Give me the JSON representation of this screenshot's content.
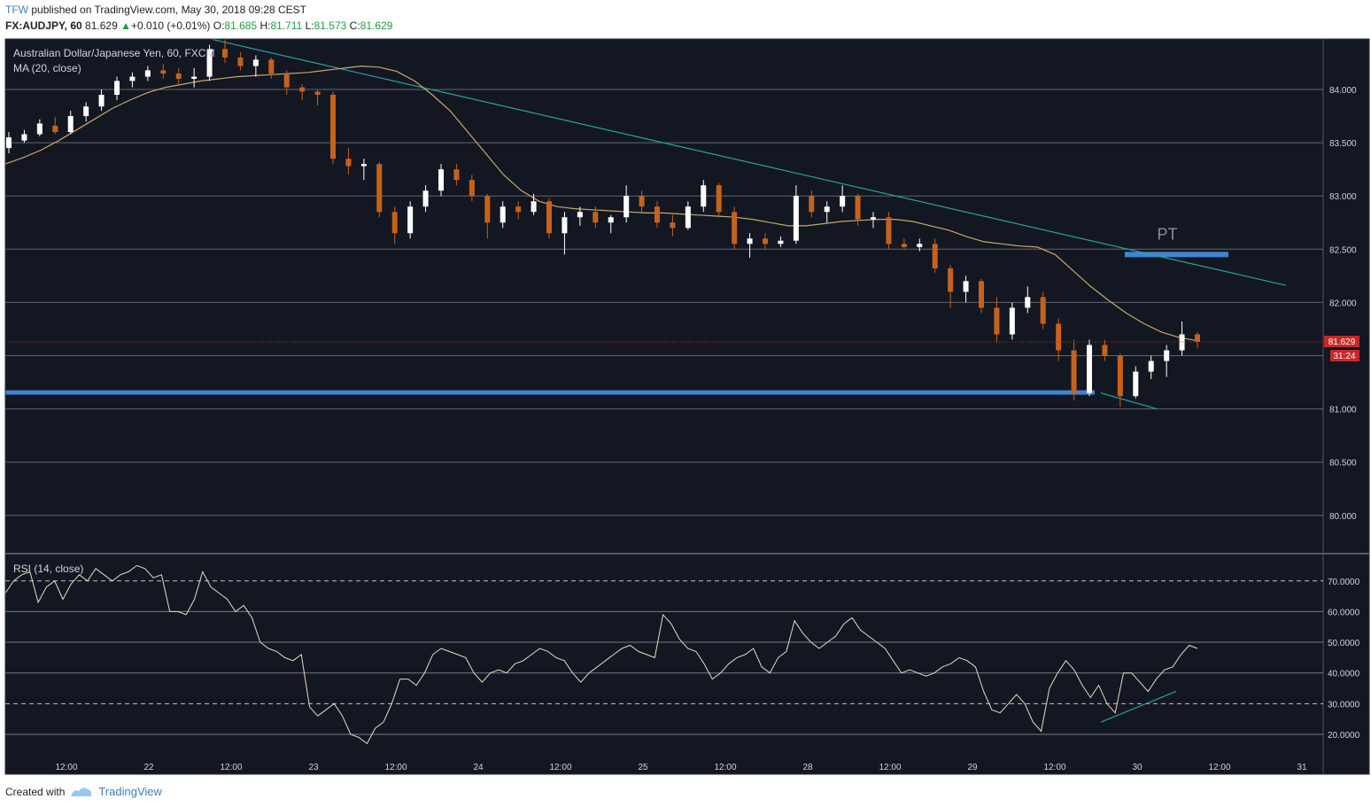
{
  "header": {
    "author": "TFW",
    "published_text": "published on TradingView.com, May 30, 2018 09:28 CEST",
    "symbol": "FX:AUDJPY, 60",
    "last": "81.629",
    "change": "+0.010 (+0.01%)",
    "o_label": "O:",
    "o_value": "81.685",
    "h_label": "H:",
    "h_value": "81.711",
    "l_label": "L:",
    "l_value": "81.573",
    "c_label": "C:",
    "c_value": "81.629"
  },
  "chart_data": [
    {
      "type": "candlestick",
      "title": "Australian Dollar/Japanese Yen, 60, FXCM",
      "indicator_label": "MA (20, close)",
      "ylim": [
        79.7,
        84.5
      ],
      "yticks": [
        80.0,
        80.5,
        81.0,
        81.5,
        82.0,
        82.5,
        83.0,
        83.5,
        84.0
      ],
      "ytick_labels": [
        "80.000",
        "80.500",
        "81.000",
        "",
        "82.000",
        "82.500",
        "83.000",
        "83.500",
        "84.000"
      ],
      "xlabels": [
        "12:00",
        "22",
        "12:00",
        "23",
        "12:00",
        "24",
        "12:00",
        "25",
        "12:00",
        "28",
        "12:00",
        "29",
        "12:00",
        "30",
        "12:00",
        "31"
      ],
      "grid": true,
      "last_price": 81.629,
      "last_price_label": "81.629",
      "countdown_label": "31:24",
      "close_path": [
        83.45,
        83.55,
        83.6,
        83.65,
        83.7,
        83.6,
        83.75,
        83.8,
        83.85,
        83.95,
        84.05,
        84.1,
        84.15,
        84.2,
        84.18,
        84.22,
        84.15,
        84.1,
        84.05,
        84.1,
        84.25,
        84.4,
        84.35,
        84.3,
        84.25,
        84.2,
        84.3,
        84.2,
        84.1,
        84.05,
        84.0,
        84.02,
        83.98,
        83.95,
        83.4,
        83.3,
        83.35,
        83.1,
        82.85,
        82.6,
        82.65,
        82.75,
        82.9,
        82.95,
        83.05,
        83.2,
        83.25,
        83.2,
        83.15,
        82.95,
        82.9,
        82.85,
        82.8,
        82.7,
        82.8,
        82.9,
        82.95,
        82.85,
        82.6,
        82.5,
        82.65,
        82.75,
        82.8,
        82.85,
        82.8,
        82.75,
        82.8,
        82.85,
        82.9,
        82.95,
        82.9,
        82.8,
        82.95,
        83.05,
        82.95,
        82.8,
        82.6,
        82.55,
        82.6,
        82.65,
        82.6,
        82.55,
        82.7,
        82.95,
        82.9,
        82.85,
        82.8,
        82.85,
        82.9,
        82.95,
        82.9,
        82.85,
        82.8,
        82.7,
        82.55,
        82.5,
        82.52,
        82.5,
        82.55,
        82.55,
        82.58,
        82.5,
        82.2,
        82.1,
        82.15,
        82.2,
        82.1,
        81.95,
        81.7,
        81.8,
        81.9,
        82.05,
        81.95,
        81.75,
        81.55,
        81.5,
        81.35,
        81.15,
        81.45,
        81.55,
        81.5,
        81.3,
        81.2,
        81.15,
        81.3,
        81.45,
        81.5,
        81.55,
        81.65,
        81.63
      ],
      "ma_path": [
        83.3,
        83.36,
        83.43,
        83.52,
        83.62,
        83.72,
        83.82,
        83.9,
        83.97,
        84.02,
        84.05,
        84.08,
        84.1,
        84.12,
        84.13,
        84.14,
        84.15,
        84.16,
        84.18,
        84.2,
        84.22,
        84.21,
        84.17,
        84.08,
        83.95,
        83.8,
        83.6,
        83.4,
        83.2,
        83.05,
        82.95,
        82.9,
        82.88,
        82.87,
        82.86,
        82.85,
        82.84,
        82.84,
        82.83,
        82.82,
        82.81,
        82.8,
        82.78,
        82.75,
        82.72,
        82.72,
        82.74,
        82.76,
        82.77,
        82.78,
        82.78,
        82.76,
        82.72,
        82.68,
        82.62,
        82.57,
        82.55,
        82.53,
        82.52,
        82.45,
        82.3,
        82.15,
        82.02,
        81.9,
        81.8,
        81.72,
        81.67,
        81.64
      ],
      "ohlc": [
        {
          "o": 83.45,
          "h": 83.6,
          "l": 83.4,
          "c": 83.55
        },
        {
          "o": 83.52,
          "h": 83.62,
          "l": 83.5,
          "c": 83.58
        },
        {
          "o": 83.58,
          "h": 83.72,
          "l": 83.56,
          "c": 83.68
        },
        {
          "o": 83.66,
          "h": 83.74,
          "l": 83.58,
          "c": 83.6
        },
        {
          "o": 83.6,
          "h": 83.8,
          "l": 83.58,
          "c": 83.75
        },
        {
          "o": 83.75,
          "h": 83.88,
          "l": 83.7,
          "c": 83.84
        },
        {
          "o": 83.84,
          "h": 84.0,
          "l": 83.8,
          "c": 83.95
        },
        {
          "o": 83.95,
          "h": 84.12,
          "l": 83.9,
          "c": 84.08
        },
        {
          "o": 84.08,
          "h": 84.16,
          "l": 84.02,
          "c": 84.12
        },
        {
          "o": 84.12,
          "h": 84.22,
          "l": 84.08,
          "c": 84.18
        },
        {
          "o": 84.18,
          "h": 84.24,
          "l": 84.1,
          "c": 84.15
        },
        {
          "o": 84.15,
          "h": 84.2,
          "l": 84.05,
          "c": 84.1
        },
        {
          "o": 84.1,
          "h": 84.2,
          "l": 84.02,
          "c": 84.12
        },
        {
          "o": 84.12,
          "h": 84.42,
          "l": 84.08,
          "c": 84.38
        },
        {
          "o": 84.38,
          "h": 84.48,
          "l": 84.25,
          "c": 84.3
        },
        {
          "o": 84.3,
          "h": 84.35,
          "l": 84.18,
          "c": 84.22
        },
        {
          "o": 84.22,
          "h": 84.32,
          "l": 84.12,
          "c": 84.28
        },
        {
          "o": 84.28,
          "h": 84.3,
          "l": 84.1,
          "c": 84.15
        },
        {
          "o": 84.15,
          "h": 84.18,
          "l": 83.95,
          "c": 84.02
        },
        {
          "o": 84.02,
          "h": 84.05,
          "l": 83.9,
          "c": 83.98
        },
        {
          "o": 83.98,
          "h": 84.0,
          "l": 83.85,
          "c": 83.95
        },
        {
          "o": 83.95,
          "h": 83.98,
          "l": 83.3,
          "c": 83.35
        },
        {
          "o": 83.35,
          "h": 83.45,
          "l": 83.2,
          "c": 83.28
        },
        {
          "o": 83.28,
          "h": 83.35,
          "l": 83.15,
          "c": 83.3
        },
        {
          "o": 83.3,
          "h": 83.32,
          "l": 82.8,
          "c": 82.85
        },
        {
          "o": 82.85,
          "h": 82.9,
          "l": 82.55,
          "c": 82.65
        },
        {
          "o": 82.65,
          "h": 82.95,
          "l": 82.6,
          "c": 82.9
        },
        {
          "o": 82.9,
          "h": 83.1,
          "l": 82.85,
          "c": 83.05
        },
        {
          "o": 83.05,
          "h": 83.3,
          "l": 83.0,
          "c": 83.25
        },
        {
          "o": 83.25,
          "h": 83.3,
          "l": 83.1,
          "c": 83.15
        },
        {
          "o": 83.15,
          "h": 83.2,
          "l": 82.95,
          "c": 83.0
        },
        {
          "o": 83.0,
          "h": 83.02,
          "l": 82.6,
          "c": 82.75
        },
        {
          "o": 82.75,
          "h": 82.95,
          "l": 82.7,
          "c": 82.9
        },
        {
          "o": 82.9,
          "h": 82.95,
          "l": 82.78,
          "c": 82.85
        },
        {
          "o": 82.85,
          "h": 83.02,
          "l": 82.82,
          "c": 82.95
        },
        {
          "o": 82.95,
          "h": 82.98,
          "l": 82.6,
          "c": 82.65
        },
        {
          "o": 82.65,
          "h": 82.85,
          "l": 82.45,
          "c": 82.8
        },
        {
          "o": 82.8,
          "h": 82.9,
          "l": 82.72,
          "c": 82.85
        },
        {
          "o": 82.85,
          "h": 82.9,
          "l": 82.7,
          "c": 82.75
        },
        {
          "o": 82.75,
          "h": 82.82,
          "l": 82.65,
          "c": 82.8
        },
        {
          "o": 82.8,
          "h": 83.1,
          "l": 82.75,
          "c": 83.0
        },
        {
          "o": 83.0,
          "h": 83.05,
          "l": 82.85,
          "c": 82.9
        },
        {
          "o": 82.9,
          "h": 82.95,
          "l": 82.7,
          "c": 82.75
        },
        {
          "o": 82.75,
          "h": 82.82,
          "l": 82.62,
          "c": 82.7
        },
        {
          "o": 82.7,
          "h": 82.95,
          "l": 82.68,
          "c": 82.9
        },
        {
          "o": 82.9,
          "h": 83.15,
          "l": 82.85,
          "c": 83.1
        },
        {
          "o": 83.1,
          "h": 83.12,
          "l": 82.8,
          "c": 82.85
        },
        {
          "o": 82.85,
          "h": 82.9,
          "l": 82.5,
          "c": 82.55
        },
        {
          "o": 82.55,
          "h": 82.65,
          "l": 82.42,
          "c": 82.6
        },
        {
          "o": 82.6,
          "h": 82.65,
          "l": 82.5,
          "c": 82.55
        },
        {
          "o": 82.55,
          "h": 82.62,
          "l": 82.52,
          "c": 82.58
        },
        {
          "o": 82.58,
          "h": 83.1,
          "l": 82.55,
          "c": 83.0
        },
        {
          "o": 83.0,
          "h": 83.05,
          "l": 82.8,
          "c": 82.85
        },
        {
          "o": 82.85,
          "h": 82.95,
          "l": 82.75,
          "c": 82.9
        },
        {
          "o": 82.9,
          "h": 83.1,
          "l": 82.85,
          "c": 83.0
        },
        {
          "o": 83.0,
          "h": 83.02,
          "l": 82.72,
          "c": 82.78
        },
        {
          "o": 82.78,
          "h": 82.85,
          "l": 82.7,
          "c": 82.8
        },
        {
          "o": 82.8,
          "h": 82.85,
          "l": 82.5,
          "c": 82.55
        },
        {
          "o": 82.55,
          "h": 82.6,
          "l": 82.5,
          "c": 82.52
        },
        {
          "o": 82.52,
          "h": 82.6,
          "l": 82.48,
          "c": 82.55
        },
        {
          "o": 82.55,
          "h": 82.6,
          "l": 82.28,
          "c": 82.32
        },
        {
          "o": 82.32,
          "h": 82.35,
          "l": 81.95,
          "c": 82.1
        },
        {
          "o": 82.1,
          "h": 82.25,
          "l": 82.0,
          "c": 82.2
        },
        {
          "o": 82.2,
          "h": 82.22,
          "l": 81.9,
          "c": 81.95
        },
        {
          "o": 81.95,
          "h": 82.05,
          "l": 81.62,
          "c": 81.7
        },
        {
          "o": 81.7,
          "h": 82.0,
          "l": 81.65,
          "c": 81.95
        },
        {
          "o": 81.95,
          "h": 82.15,
          "l": 81.9,
          "c": 82.05
        },
        {
          "o": 82.05,
          "h": 82.1,
          "l": 81.75,
          "c": 81.8
        },
        {
          "o": 81.8,
          "h": 81.85,
          "l": 81.45,
          "c": 81.55
        },
        {
          "o": 81.55,
          "h": 81.65,
          "l": 81.08,
          "c": 81.15
        },
        {
          "o": 81.15,
          "h": 81.65,
          "l": 81.12,
          "c": 81.6
        },
        {
          "o": 81.6,
          "h": 81.65,
          "l": 81.45,
          "c": 81.5
        },
        {
          "o": 81.5,
          "h": 81.52,
          "l": 81.02,
          "c": 81.12
        },
        {
          "o": 81.12,
          "h": 81.4,
          "l": 81.1,
          "c": 81.35
        },
        {
          "o": 81.35,
          "h": 81.5,
          "l": 81.28,
          "c": 81.45
        },
        {
          "o": 81.45,
          "h": 81.6,
          "l": 81.3,
          "c": 81.55
        },
        {
          "o": 81.55,
          "h": 81.82,
          "l": 81.5,
          "c": 81.7
        },
        {
          "o": 81.7,
          "h": 81.72,
          "l": 81.57,
          "c": 81.63
        }
      ]
    },
    {
      "type": "line",
      "title": "RSI (14, close)",
      "ylim": [
        15,
        78
      ],
      "yticks": [
        20,
        30,
        40,
        50,
        60,
        70
      ],
      "ytick_labels": [
        "20.0000",
        "30.0000",
        "40.0000",
        "50.0000",
        "60.0000",
        "70.0000"
      ],
      "dashed_levels": [
        30,
        70
      ],
      "values": [
        66,
        70,
        72,
        73,
        63,
        68,
        70,
        64,
        69,
        72,
        70,
        74,
        72,
        70,
        72,
        73,
        75,
        74,
        71,
        72,
        60,
        60,
        59,
        64,
        73,
        68,
        66,
        64,
        60,
        62,
        58,
        50,
        48,
        47,
        45,
        44,
        46,
        29,
        26,
        28,
        30,
        26,
        20,
        19,
        17,
        22,
        24,
        30,
        38,
        38,
        36,
        40,
        46,
        48,
        47,
        46,
        45,
        40,
        37,
        40,
        41,
        40,
        43,
        44,
        46,
        48,
        47,
        45,
        44,
        40,
        37,
        40,
        42,
        44,
        46,
        48,
        49,
        47,
        46,
        45,
        59,
        56,
        51,
        48,
        47,
        43,
        38,
        40,
        43,
        45,
        46,
        48,
        42,
        40,
        45,
        47,
        57,
        53,
        50,
        48,
        50,
        52,
        56,
        58,
        54,
        52,
        50,
        48,
        44,
        40,
        41,
        40,
        39,
        40,
        42,
        43,
        45,
        44,
        42,
        34,
        28,
        27,
        30,
        33,
        30,
        24,
        21,
        35,
        40,
        44,
        41,
        36,
        32,
        36,
        30,
        27,
        40,
        40,
        37,
        34,
        38,
        41,
        42,
        46,
        49,
        48
      ]
    }
  ],
  "annotations": {
    "pt_label": "PT"
  },
  "colors": {
    "background": "#131722",
    "grid": "#787b86",
    "up": "#ffffff",
    "down": "#c6621b",
    "ma": "#c9a76a",
    "trendline": "#26a69a",
    "level": "#3c87d4",
    "price_tag": "#c62828"
  },
  "footer": {
    "created_with": "Created with",
    "brand": "TradingView"
  }
}
